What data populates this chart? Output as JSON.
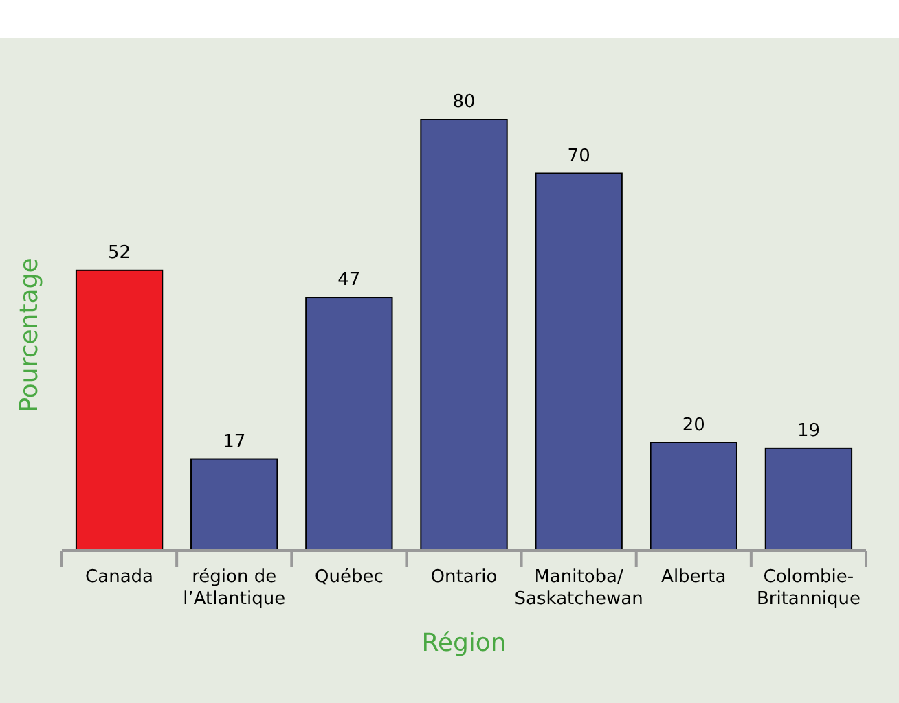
{
  "chart_data": {
    "type": "bar",
    "xlabel": "Région",
    "ylabel": "Pourcentage",
    "categories": [
      "Canada",
      "région de l’Atlantique",
      "Québec",
      "Ontario",
      "Manitoba/Saskatchewan",
      "Alberta",
      "Colombie-Britannique"
    ],
    "values": [
      52,
      17,
      47,
      80,
      70,
      20,
      19
    ],
    "colors": [
      "#ed1c24",
      "#4a5597",
      "#4a5597",
      "#4a5597",
      "#4a5597",
      "#4a5597",
      "#4a5597"
    ],
    "data_labels": true
  }
}
